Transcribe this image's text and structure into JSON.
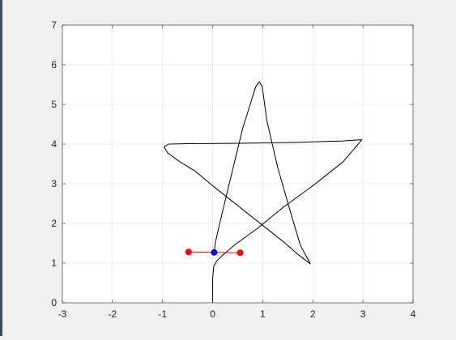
{
  "chart_data": {
    "type": "line",
    "title": "",
    "xlabel": "",
    "ylabel": "",
    "xlim": [
      -3,
      4
    ],
    "ylim": [
      0,
      7
    ],
    "x_ticks": [
      -3,
      -2,
      -1,
      0,
      1,
      2,
      3,
      4
    ],
    "y_ticks": [
      0,
      1,
      2,
      3,
      4,
      5,
      6,
      7
    ],
    "grid": true,
    "series": [
      {
        "color": "#000000",
        "points": [
          [
            0.0,
            0.0
          ],
          [
            0.0,
            0.6
          ],
          [
            0.02,
            0.92
          ],
          [
            0.08,
            1.05
          ],
          [
            0.2,
            1.2
          ],
          [
            0.45,
            1.47
          ],
          [
            0.9,
            1.88
          ],
          [
            1.4,
            2.4
          ],
          [
            2.0,
            2.95
          ],
          [
            2.6,
            3.55
          ],
          [
            2.98,
            4.11
          ],
          [
            2.6,
            4.08
          ],
          [
            1.6,
            4.04
          ],
          [
            0.5,
            4.02
          ],
          [
            -0.5,
            4.01
          ],
          [
            -0.88,
            4.0
          ],
          [
            -0.97,
            3.93
          ],
          [
            -0.9,
            3.78
          ],
          [
            -0.65,
            3.55
          ],
          [
            -0.35,
            3.32
          ],
          [
            0.0,
            2.95
          ],
          [
            0.5,
            2.45
          ],
          [
            1.0,
            1.95
          ],
          [
            1.4,
            1.55
          ],
          [
            1.72,
            1.2
          ],
          [
            1.88,
            1.05
          ],
          [
            1.95,
            0.98
          ],
          [
            1.9,
            1.1
          ],
          [
            1.75,
            1.45
          ],
          [
            1.55,
            2.3
          ],
          [
            1.3,
            3.4
          ],
          [
            1.08,
            4.6
          ],
          [
            0.99,
            5.45
          ],
          [
            0.93,
            5.57
          ],
          [
            0.86,
            5.45
          ],
          [
            0.6,
            4.4
          ],
          [
            0.35,
            3.1
          ],
          [
            0.15,
            2.05
          ],
          [
            0.05,
            1.5
          ],
          [
            0.03,
            1.27
          ]
        ]
      },
      {
        "color": "#ff0000",
        "points": [
          [
            -0.48,
            1.28
          ],
          [
            0.03,
            1.27
          ],
          [
            0.55,
            1.26
          ]
        ]
      }
    ],
    "markers": [
      {
        "x": -0.48,
        "y": 1.28,
        "color": "#ff0000"
      },
      {
        "x": 0.55,
        "y": 1.26,
        "color": "#ff0000"
      },
      {
        "x": 0.03,
        "y": 1.27,
        "color": "#0000ff"
      }
    ]
  }
}
